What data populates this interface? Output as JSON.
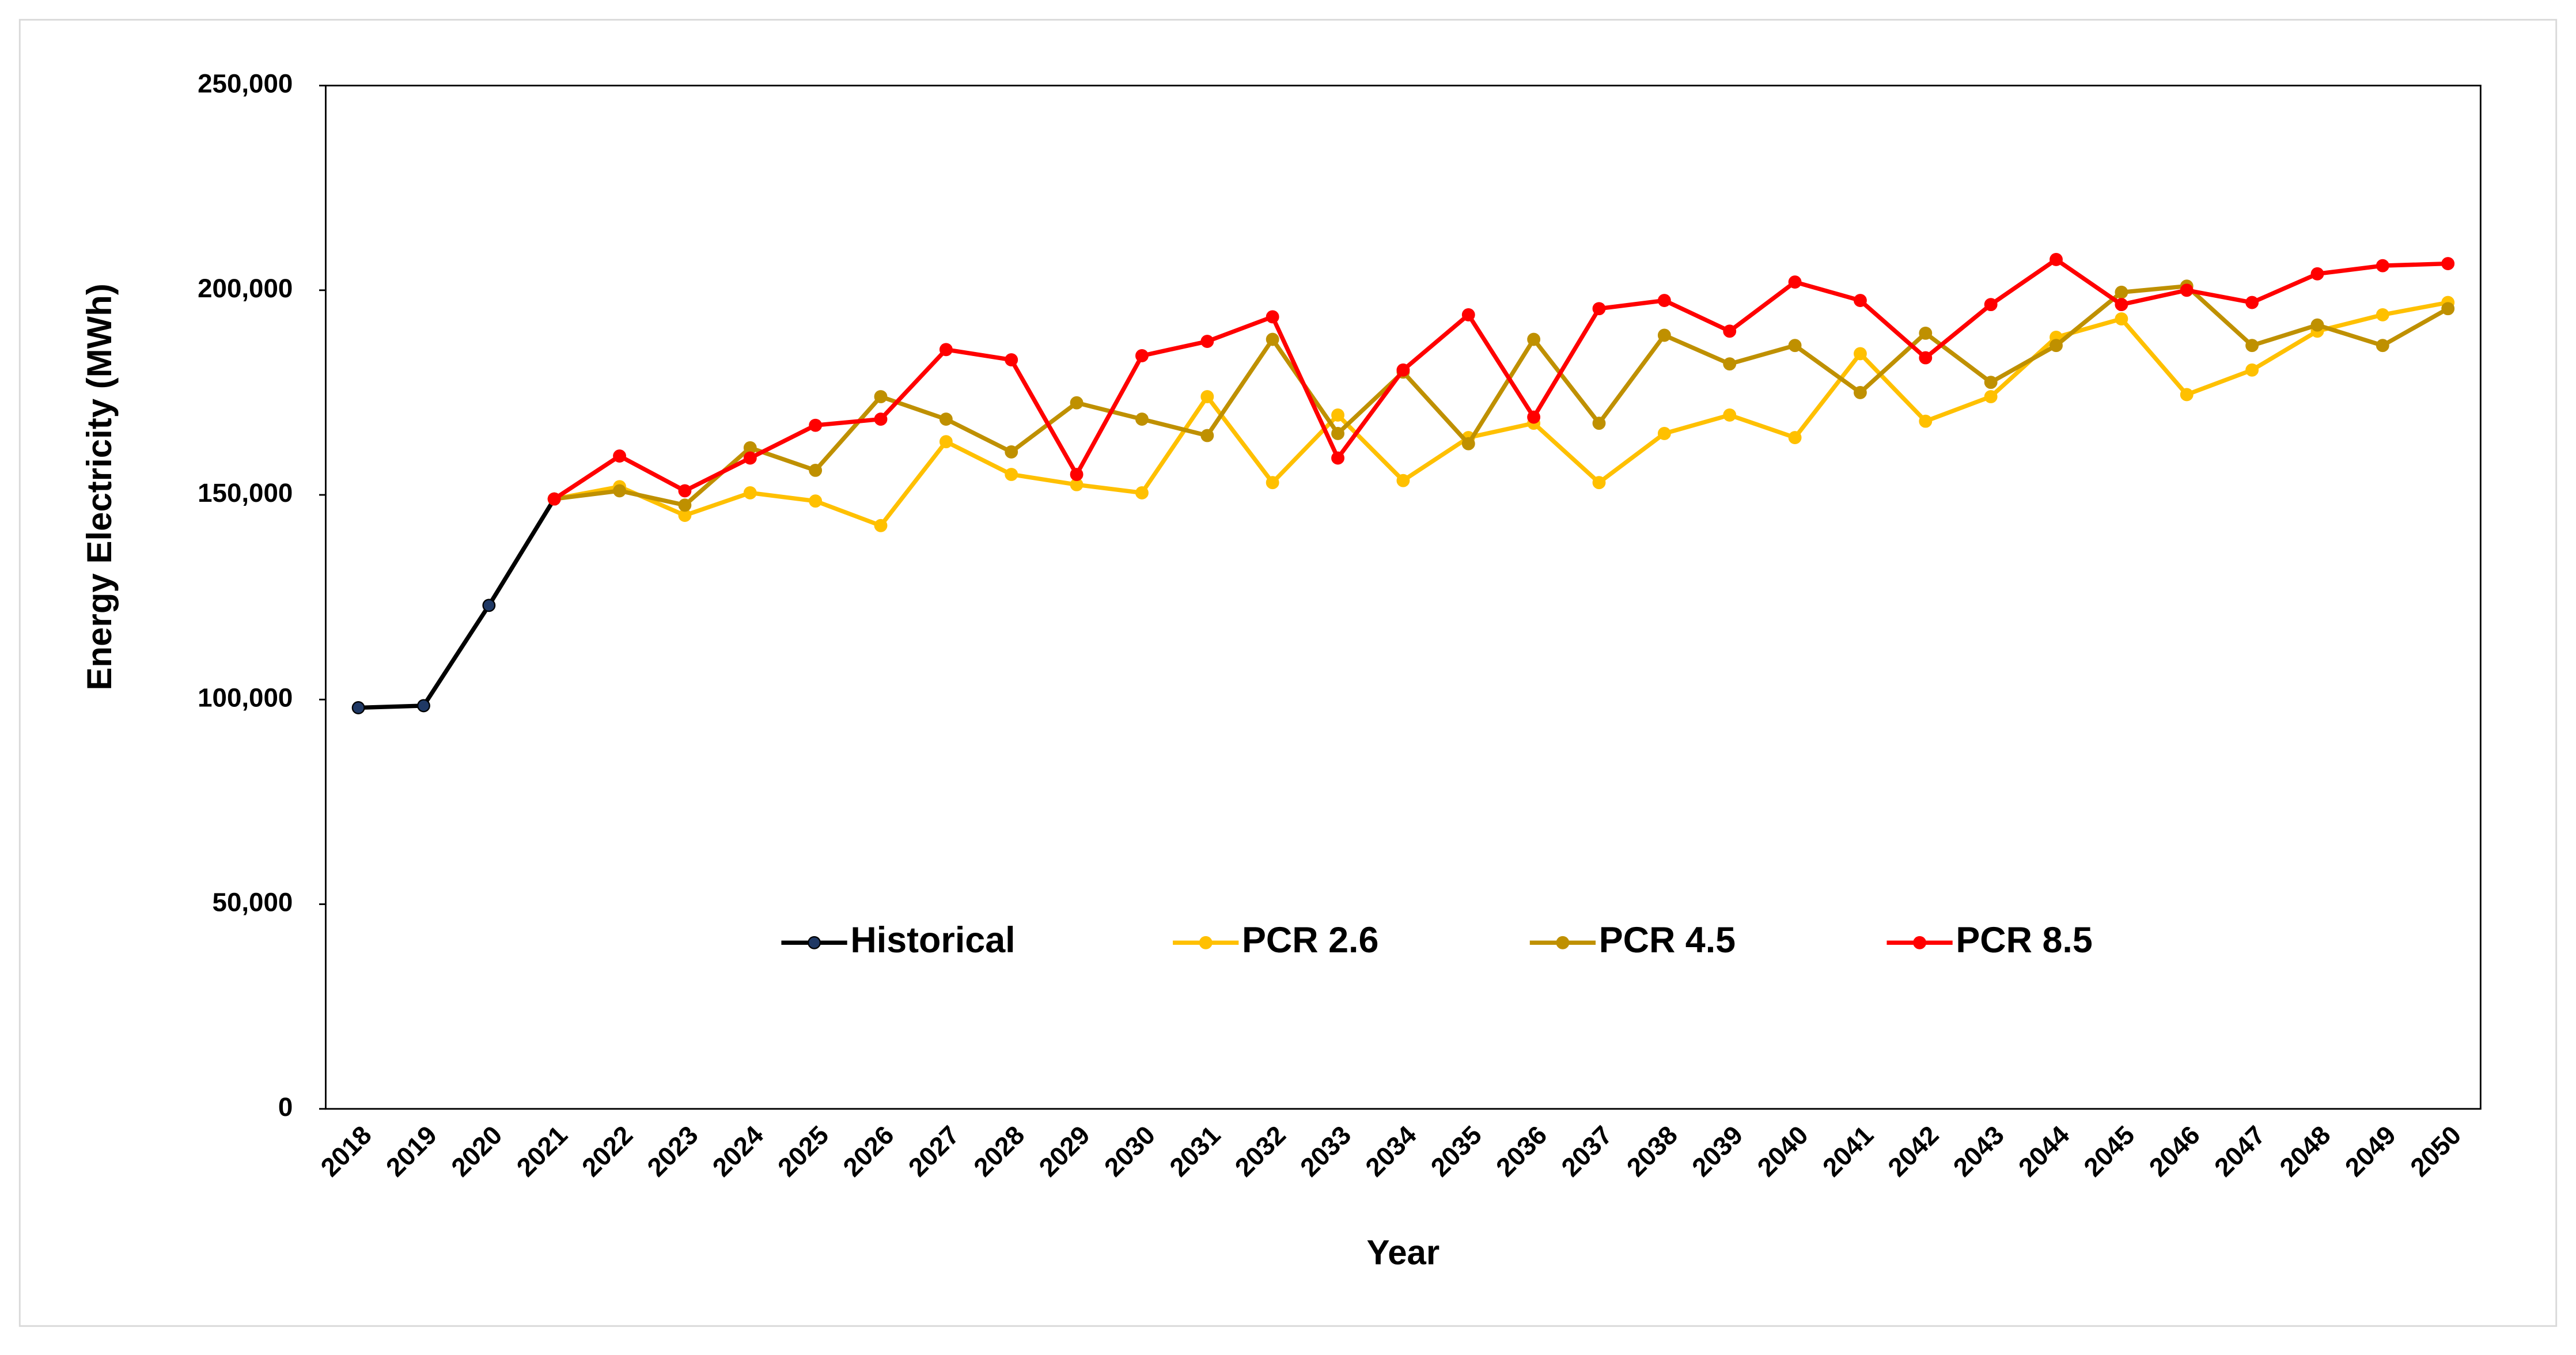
{
  "chart_data": {
    "type": "line",
    "y_label": "Energy Electricity (MWh)",
    "x_label": "Year",
    "categories": [
      "2018",
      "2019",
      "2020",
      "2021",
      "2022",
      "2023",
      "2024",
      "2025",
      "2026",
      "2027",
      "2028",
      "2029",
      "2030",
      "2031",
      "2032",
      "2033",
      "2034",
      "2035",
      "2036",
      "2037",
      "2038",
      "2039",
      "2040",
      "2041",
      "2042",
      "2043",
      "2044",
      "2045",
      "2046",
      "2047",
      "2048",
      "2049",
      "2050"
    ],
    "series": [
      {
        "name": "Historical",
        "color": "#000000",
        "marker_color": "#1f3864",
        "values": [
          98000,
          98500,
          123000,
          149000,
          null,
          null,
          null,
          null,
          null,
          null,
          null,
          null,
          null,
          null,
          null,
          null,
          null,
          null,
          null,
          null,
          null,
          null,
          null,
          null,
          null,
          null,
          null,
          null,
          null,
          null,
          null,
          null,
          null
        ]
      },
      {
        "name": "PCR 2.6",
        "color": "#ffc000",
        "marker_color": "#ffc000",
        "values": [
          null,
          null,
          null,
          149000,
          152000,
          145000,
          150500,
          148500,
          142500,
          163000,
          155000,
          152500,
          150500,
          174000,
          153000,
          169500,
          153500,
          164000,
          167500,
          153000,
          165000,
          169500,
          164000,
          184500,
          168000,
          174000,
          188500,
          193000,
          174500,
          180500,
          190000,
          194000,
          197000
        ]
      },
      {
        "name": "PCR 4.5",
        "color": "#bf9000",
        "marker_color": "#bf9000",
        "values": [
          null,
          null,
          null,
          149000,
          151000,
          147500,
          161500,
          156000,
          174000,
          168500,
          160500,
          172500,
          168500,
          164500,
          188000,
          165000,
          180000,
          162500,
          188000,
          167500,
          189000,
          182000,
          186500,
          175000,
          189500,
          177500,
          186500,
          199500,
          201000,
          186500,
          191500,
          186500,
          195500
        ]
      },
      {
        "name": "PCR 8.5",
        "color": "#ff0000",
        "marker_color": "#ff0000",
        "values": [
          null,
          null,
          null,
          149000,
          159500,
          151000,
          159000,
          167000,
          168500,
          185500,
          183000,
          155000,
          184000,
          187500,
          193500,
          159000,
          180500,
          194000,
          169000,
          195500,
          197500,
          190000,
          202000,
          197500,
          183500,
          196500,
          207500,
          196500,
          200000,
          197000,
          204000,
          206000,
          206500
        ]
      }
    ],
    "ylim": [
      0,
      250000
    ],
    "yticks": [
      0,
      {
        "value": 50000,
        "label": "50,000"
      },
      {
        "value": 100000,
        "label": "100,000"
      },
      {
        "value": 150000,
        "label": "150,000"
      },
      {
        "value": 200000,
        "label": "200,000"
      },
      {
        "value": 250000,
        "label": "250,000"
      }
    ]
  }
}
